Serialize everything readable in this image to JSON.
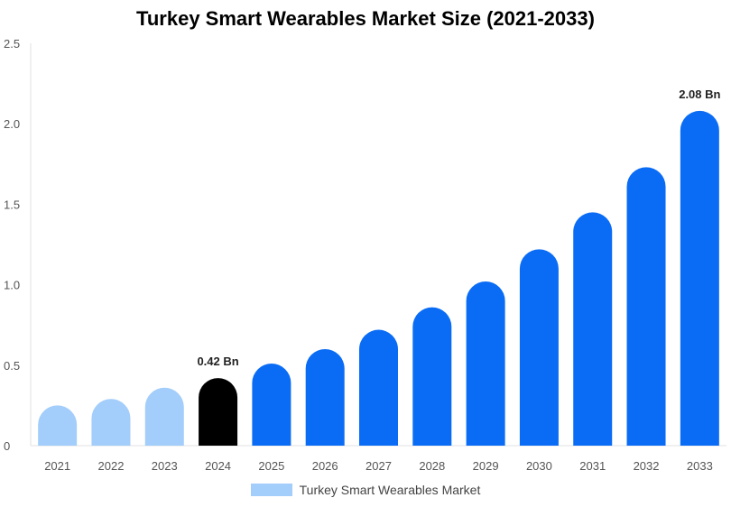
{
  "chart_data": {
    "type": "bar",
    "title": "Turkey Smart Wearables Market Size (2021-2033)",
    "xlabel": "",
    "ylabel": "",
    "categories": [
      "2021",
      "2022",
      "2023",
      "2024",
      "2025",
      "2026",
      "2027",
      "2028",
      "2029",
      "2030",
      "2031",
      "2032",
      "2033"
    ],
    "series": [
      {
        "name": "Turkey Smart Wearables Market",
        "values": [
          0.25,
          0.29,
          0.36,
          0.42,
          0.51,
          0.6,
          0.72,
          0.86,
          1.02,
          1.22,
          1.45,
          1.73,
          2.08
        ]
      }
    ],
    "ylim": [
      0,
      2.5
    ],
    "yticks": [
      "0",
      "0.5",
      "1.0",
      "1.5",
      "2.0",
      "2.5"
    ],
    "data_labels": [
      {
        "category": "2024",
        "text": "0.42 Bn"
      },
      {
        "category": "2033",
        "text": "2.08 Bn"
      }
    ],
    "colors": {
      "historical": "#a3cdfa",
      "current": "#000000",
      "forecast": "#0a6cf5"
    },
    "legend": {
      "position": "bottom",
      "label": "Turkey Smart Wearables Market",
      "color": "#a3cdfa"
    },
    "grid": false
  }
}
